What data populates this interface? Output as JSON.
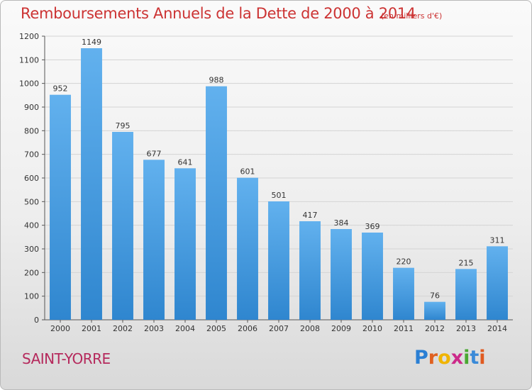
{
  "title": "Remboursements Annuels de la Dette de 2000 à 2014",
  "unit": "(en milliers d'€)",
  "city": "SAINT-YORRE",
  "brand": {
    "letters": [
      "P",
      "r",
      "o",
      "x",
      "i",
      "t",
      "i"
    ],
    "colors": [
      "#2a7fd4",
      "#e06020",
      "#f0b400",
      "#cc2a8a",
      "#4aa832",
      "#3a8ad8",
      "#e05a20"
    ]
  },
  "colors": {
    "bar_light": "#62b1ee",
    "bar_dark": "#2f86cf",
    "title": "#cc3333",
    "city": "#b5295c"
  },
  "chart_data": {
    "type": "bar",
    "categories": [
      "2000",
      "2001",
      "2002",
      "2003",
      "2004",
      "2005",
      "2006",
      "2007",
      "2008",
      "2009",
      "2010",
      "2011",
      "2012",
      "2013",
      "2014"
    ],
    "values": [
      952,
      1149,
      795,
      677,
      641,
      988,
      601,
      501,
      417,
      384,
      369,
      220,
      76,
      215,
      311
    ],
    "ylim": [
      0,
      1200
    ],
    "yticks": [
      0,
      100,
      200,
      300,
      400,
      500,
      600,
      700,
      800,
      900,
      1000,
      1100,
      1200
    ],
    "grid": true,
    "legend": "none"
  }
}
